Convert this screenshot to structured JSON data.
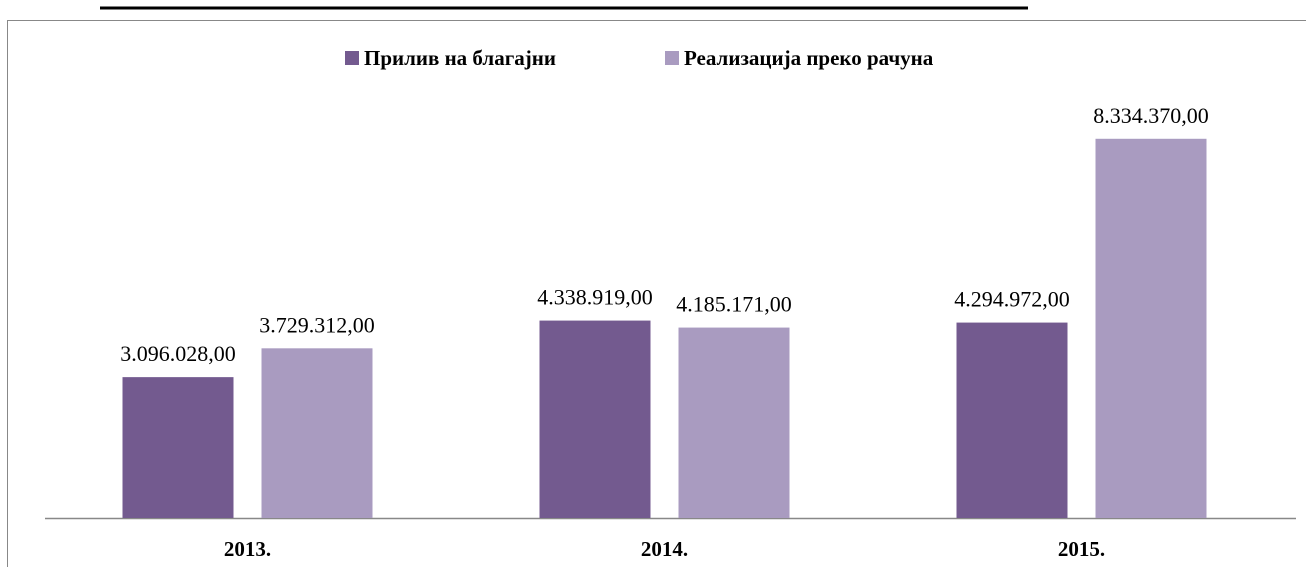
{
  "chart_data": {
    "type": "bar",
    "categories": [
      "2013.",
      "2014.",
      "2015."
    ],
    "series": [
      {
        "name": "Прилив на благајни",
        "color": "#735a8f",
        "values": [
          3096028,
          4338919,
          4294972
        ],
        "value_labels": [
          "3.096.028,00",
          "4.338.919,00",
          "4.294.972,00"
        ]
      },
      {
        "name": "Реализација преко рачуна",
        "color": "#a99bc0",
        "values": [
          3729312,
          4185171,
          8334370
        ],
        "value_labels": [
          "3.729.312,00",
          "4.185.171,00",
          "8.334.370,00"
        ]
      }
    ],
    "ylim": [
      0,
      9000000
    ],
    "legend": "top"
  }
}
